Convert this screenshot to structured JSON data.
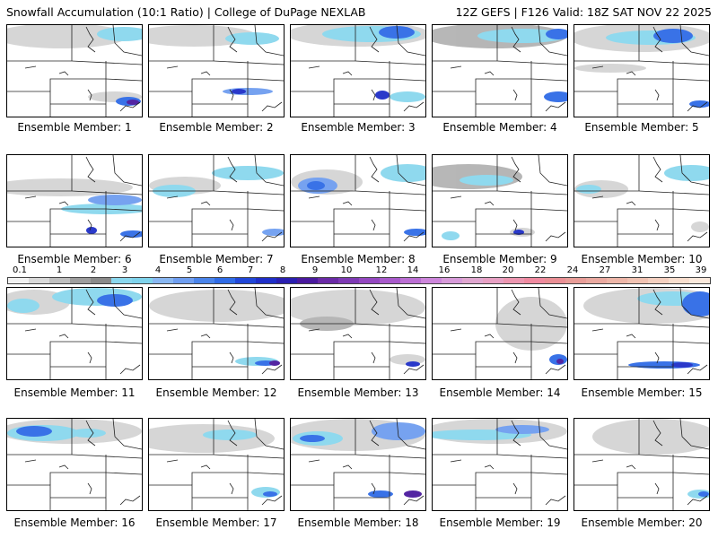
{
  "header": {
    "left": "Snowfall Accumulation (10:1 Ratio) | College of DuPage NEXLAB",
    "right": "12Z GEFS | F126 Valid: 18Z SAT NOV 22 2025"
  },
  "legend": {
    "labels": [
      "0.1",
      "1",
      "2",
      "3",
      "4",
      "5",
      "6",
      "7",
      "8",
      "9",
      "10",
      "12",
      "14",
      "16",
      "18",
      "20",
      "22",
      "24",
      "27",
      "31",
      "35",
      "39"
    ],
    "colors": [
      "#f2f2f2",
      "#d9d9d9",
      "#bfbfbf",
      "#9e9e9e",
      "#8a8a8a",
      "#8ad7ee",
      "#7fd3ec",
      "#89b7f2",
      "#6f9ef0",
      "#4a84ea",
      "#2f6be6",
      "#2147d8",
      "#1f2fc8",
      "#2a1fb0",
      "#4a1a9e",
      "#6a2aa6",
      "#7e3ab4",
      "#9448c0",
      "#a85acb",
      "#bb6fd3",
      "#cd86db",
      "#d79bd9",
      "#e0a7d0",
      "#e7a0c3",
      "#ec96b0",
      "#ef8aa0",
      "#ea8f95",
      "#e89d98",
      "#eaa9a0",
      "#edb6a8",
      "#f0c2b2",
      "#f4d0c0",
      "#f8dece",
      "#fbe9dc"
    ]
  },
  "members": [
    {
      "label": "Ensemble Member: 1"
    },
    {
      "label": "Ensemble Member: 2"
    },
    {
      "label": "Ensemble Member: 3"
    },
    {
      "label": "Ensemble Member: 4"
    },
    {
      "label": "Ensemble Member: 5"
    },
    {
      "label": "Ensemble Member: 6"
    },
    {
      "label": "Ensemble Member: 7"
    },
    {
      "label": "Ensemble Member: 8"
    },
    {
      "label": "Ensemble Member: 9"
    },
    {
      "label": "Ensemble Member: 10"
    },
    {
      "label": "Ensemble Member: 11"
    },
    {
      "label": "Ensemble Member: 12"
    },
    {
      "label": "Ensemble Member: 13"
    },
    {
      "label": "Ensemble Member: 14"
    },
    {
      "label": "Ensemble Member: 15"
    },
    {
      "label": "Ensemble Member: 16"
    },
    {
      "label": "Ensemble Member: 17"
    },
    {
      "label": "Ensemble Member: 18"
    },
    {
      "label": "Ensemble Member: 19"
    },
    {
      "label": "Ensemble Member: 20"
    }
  ]
}
